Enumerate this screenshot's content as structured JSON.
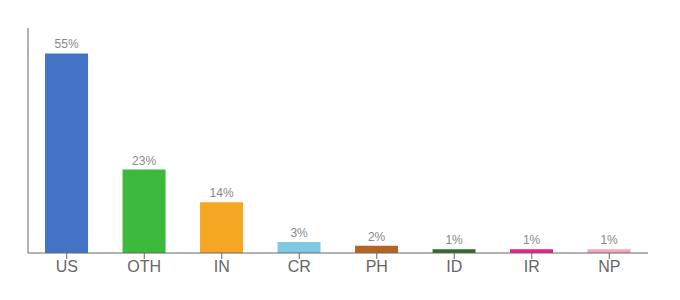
{
  "chart_data": {
    "type": "bar",
    "categories": [
      "US",
      "OTH",
      "IN",
      "CR",
      "PH",
      "ID",
      "IR",
      "NP"
    ],
    "values": [
      55,
      23,
      14,
      3,
      2,
      1,
      1,
      1
    ],
    "value_labels": [
      "55%",
      "23%",
      "14%",
      "3%",
      "2%",
      "1%",
      "1%",
      "1%"
    ],
    "colors": [
      "#4472c4",
      "#3dba3d",
      "#f5a623",
      "#7ec8e3",
      "#b5651d",
      "#2d6a2d",
      "#e91e8c",
      "#f4a7b9"
    ],
    "ylim": [
      0,
      62
    ],
    "data_labels": true,
    "tick_labels": "x",
    "grid": false
  }
}
